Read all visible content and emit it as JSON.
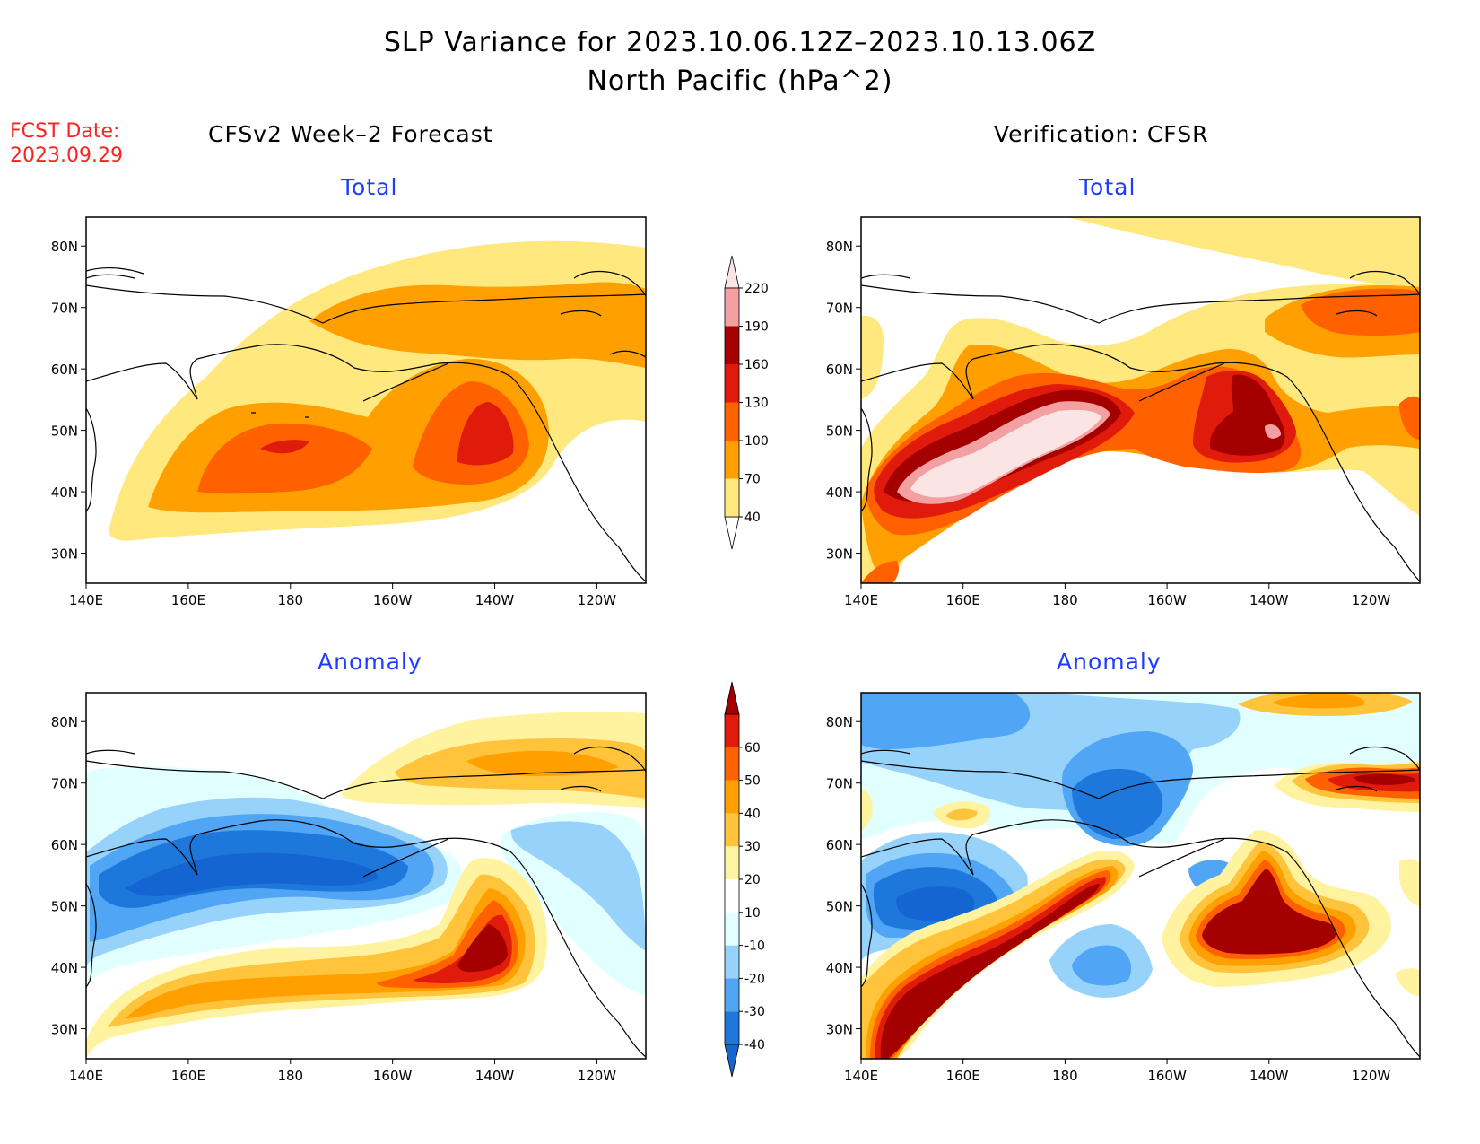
{
  "title": {
    "line1": "SLP Variance for 2023.10.06.12Z–2023.10.13.06Z",
    "line2": "North Pacific (hPa^2)"
  },
  "fcst_date": {
    "label": "FCST Date:",
    "value": "2023.09.29"
  },
  "column_headers": {
    "left": "CFSv2 Week–2 Forecast",
    "right": "Verification: CFSR"
  },
  "panel_titles": {
    "fcst_total": "Total",
    "verif_total": "Total",
    "fcst_anomaly": "Anomaly",
    "verif_anomaly": "Anomaly"
  },
  "axes": {
    "x_ticks": [
      "140E",
      "160E",
      "180",
      "160W",
      "140W",
      "120W"
    ],
    "y_ticks": [
      "30N",
      "40N",
      "50N",
      "60N",
      "70N",
      "80N"
    ]
  },
  "total_colorbar": {
    "levels": [
      "40",
      "70",
      "100",
      "130",
      "160",
      "190",
      "220"
    ],
    "colors": [
      "#ffffff",
      "#ffe97f",
      "#ffa000",
      "#ff6100",
      "#e01b0b",
      "#a50000",
      "#f2a0a1",
      "#fbe4e4"
    ]
  },
  "anomaly_colorbar": {
    "levels": [
      "-40",
      "-30",
      "-20",
      "-10",
      "10",
      "20",
      "30",
      "40",
      "50",
      "60"
    ],
    "colors": [
      "#1464d2",
      "#1e78dc",
      "#50a5f5",
      "#96d2fa",
      "#e1ffff",
      "#ffffff",
      "#fff3a0",
      "#ffc33c",
      "#ffa000",
      "#ff6000",
      "#e01b0b",
      "#a50000"
    ]
  }
}
